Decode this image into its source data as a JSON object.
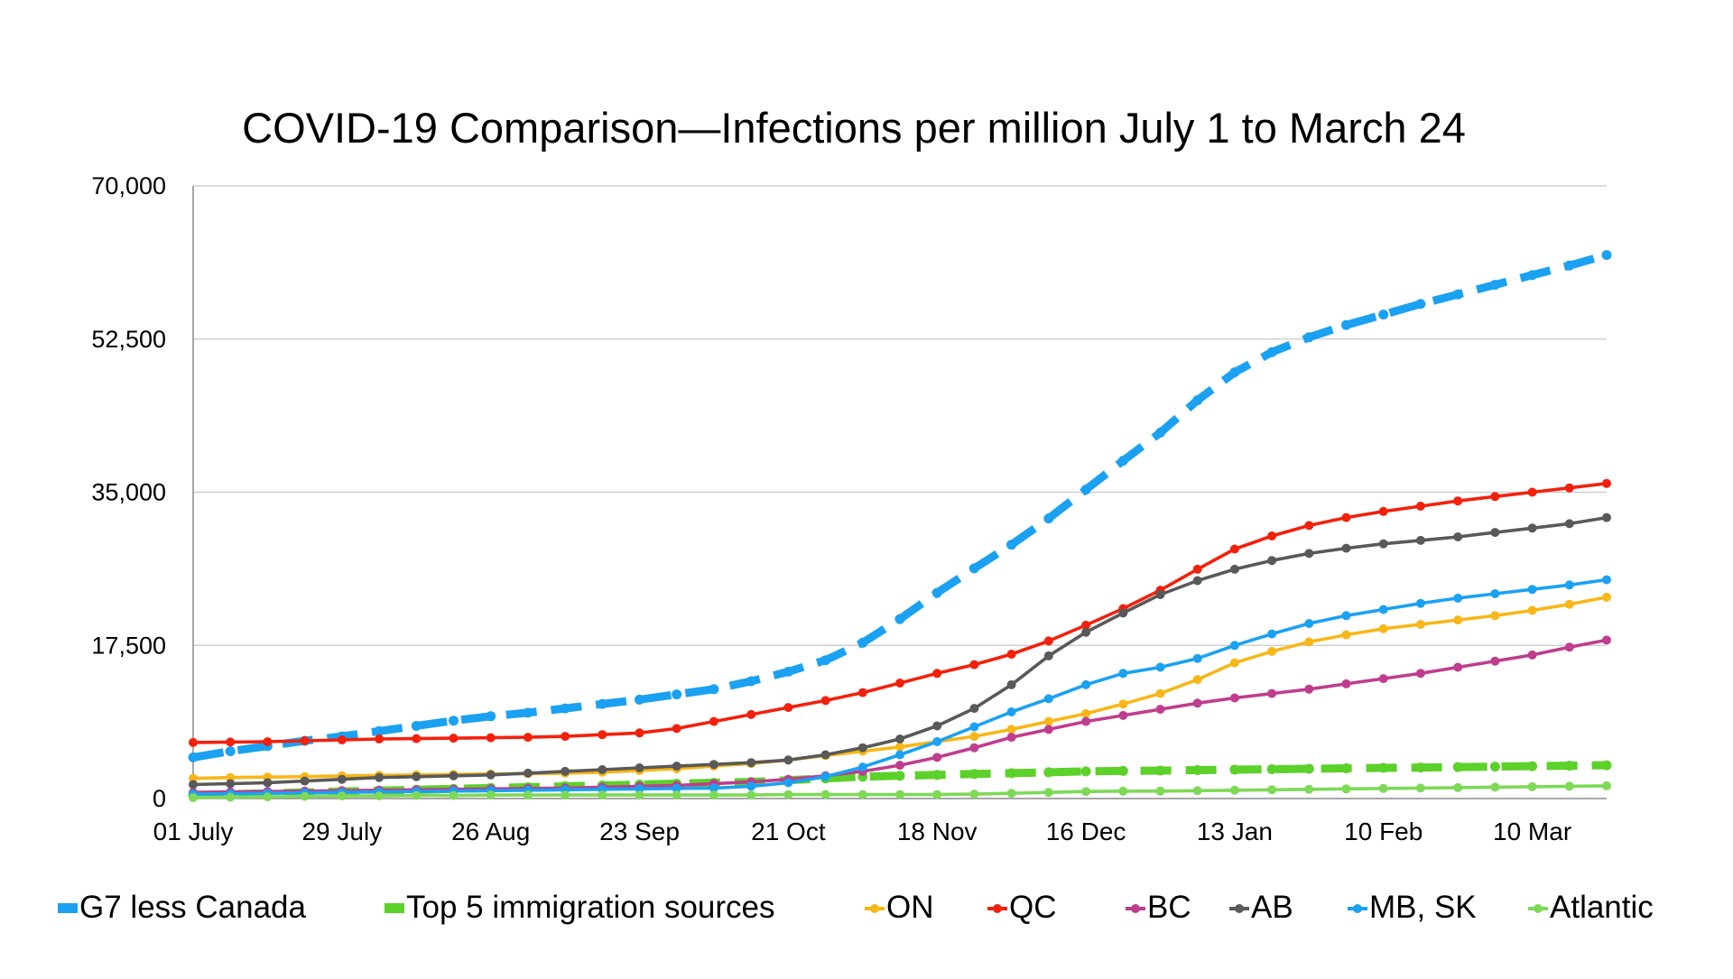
{
  "chart_data": {
    "type": "line",
    "title": "COVID-19 Comparison—Infections per million July 1 to March 24",
    "xlabel": "",
    "ylabel": "",
    "ylim": [
      0,
      70000
    ],
    "yticks": [
      0,
      17500,
      35000,
      52500,
      70000
    ],
    "ytick_labels": [
      "0",
      "17,500",
      "35,000",
      "52,500",
      "70,000"
    ],
    "x": [
      "01 July",
      "08 July",
      "15 July",
      "22 July",
      "29 July",
      "05 Aug",
      "12 Aug",
      "19 Aug",
      "26 Aug",
      "02 Sep",
      "09 Sep",
      "16 Sep",
      "23 Sep",
      "30 Sep",
      "07 Oct",
      "14 Oct",
      "21 Oct",
      "28 Oct",
      "04 Nov",
      "11 Nov",
      "18 Nov",
      "25 Nov",
      "02 Dec",
      "09 Dec",
      "16 Dec",
      "23 Dec",
      "30 Dec",
      "06 Jan",
      "13 Jan",
      "20 Jan",
      "27 Jan",
      "03 Feb",
      "10 Feb",
      "17 Feb",
      "24 Feb",
      "03 Mar",
      "10 Mar",
      "17 Mar",
      "24 Mar"
    ],
    "xtick_labels": [
      "01 July",
      "29 July",
      "26 Aug",
      "23 Sep",
      "21 Oct",
      "18 Nov",
      "16 Dec",
      "13 Jan",
      "10 Feb",
      "10 Mar"
    ],
    "grid": true,
    "legend_position": "bottom",
    "series": [
      {
        "name": "G7 less Canada",
        "color": "#1BA1F2",
        "style": "dash-dot",
        "values": [
          4700,
          5400,
          6000,
          6600,
          7100,
          7700,
          8300,
          8900,
          9400,
          9800,
          10300,
          10800,
          11300,
          11900,
          12500,
          13400,
          14500,
          15800,
          17800,
          20500,
          23500,
          26300,
          29000,
          32000,
          35300,
          38600,
          41800,
          45500,
          48700,
          51000,
          52700,
          54100,
          55300,
          56500,
          57600,
          58700,
          59800,
          60900,
          62100
        ]
      },
      {
        "name": "Top 5 immigration sources",
        "color": "#5BD12A",
        "style": "dash-dot",
        "values": [
          400,
          500,
          600,
          700,
          800,
          900,
          1000,
          1100,
          1200,
          1300,
          1400,
          1500,
          1600,
          1700,
          1800,
          1900,
          2100,
          2300,
          2500,
          2600,
          2700,
          2800,
          2900,
          3000,
          3100,
          3150,
          3200,
          3250,
          3300,
          3350,
          3400,
          3450,
          3500,
          3550,
          3600,
          3650,
          3700,
          3750,
          3800
        ]
      },
      {
        "name": "ON",
        "color": "#F7B718",
        "style": "solid",
        "values": [
          2300,
          2400,
          2450,
          2500,
          2600,
          2650,
          2700,
          2750,
          2800,
          2850,
          2900,
          3000,
          3200,
          3400,
          3700,
          4000,
          4400,
          4900,
          5400,
          5900,
          6500,
          7100,
          7900,
          8800,
          9700,
          10800,
          12000,
          13600,
          15500,
          16800,
          17900,
          18700,
          19400,
          19900,
          20400,
          20900,
          21500,
          22200,
          23000
        ]
      },
      {
        "name": "QC",
        "color": "#F2210C",
        "style": "solid",
        "values": [
          6400,
          6450,
          6500,
          6600,
          6700,
          6800,
          6850,
          6900,
          6950,
          7000,
          7100,
          7300,
          7500,
          8000,
          8800,
          9600,
          10400,
          11200,
          12100,
          13200,
          14300,
          15300,
          16500,
          18000,
          19800,
          21700,
          23800,
          26200,
          28500,
          30000,
          31200,
          32100,
          32800,
          33400,
          34000,
          34500,
          35000,
          35500,
          36000
        ]
      },
      {
        "name": "BC",
        "color": "#BF3D8E",
        "style": "solid",
        "values": [
          700,
          750,
          800,
          850,
          900,
          950,
          1000,
          1050,
          1100,
          1150,
          1200,
          1300,
          1400,
          1500,
          1700,
          1900,
          2200,
          2600,
          3100,
          3800,
          4700,
          5800,
          7000,
          7900,
          8800,
          9500,
          10200,
          10900,
          11500,
          12000,
          12500,
          13100,
          13700,
          14300,
          15000,
          15700,
          16400,
          17300,
          18100
        ]
      },
      {
        "name": "AB",
        "color": "#595959",
        "style": "solid",
        "values": [
          1600,
          1700,
          1800,
          2000,
          2200,
          2400,
          2500,
          2600,
          2700,
          2900,
          3100,
          3300,
          3500,
          3700,
          3900,
          4100,
          4400,
          5000,
          5800,
          6800,
          8300,
          10300,
          13000,
          16300,
          19000,
          21200,
          23300,
          24900,
          26200,
          27200,
          28000,
          28600,
          29100,
          29500,
          29900,
          30400,
          30900,
          31400,
          32100
        ]
      },
      {
        "name": "MB, SK",
        "color": "#1BA1F2",
        "style": "solid",
        "values": [
          500,
          550,
          600,
          650,
          700,
          750,
          800,
          850,
          900,
          950,
          1000,
          1050,
          1100,
          1150,
          1200,
          1400,
          1800,
          2500,
          3600,
          5000,
          6500,
          8200,
          9900,
          11400,
          13000,
          14300,
          15000,
          16000,
          17500,
          18800,
          20000,
          20900,
          21600,
          22300,
          22900,
          23400,
          23900,
          24400,
          25000
        ]
      },
      {
        "name": "Atlantic",
        "color": "#7ED957",
        "style": "solid",
        "values": [
          100,
          150,
          200,
          250,
          300,
          300,
          350,
          350,
          400,
          400,
          400,
          400,
          400,
          400,
          400,
          400,
          450,
          450,
          450,
          450,
          450,
          500,
          600,
          700,
          800,
          850,
          850,
          900,
          950,
          1000,
          1050,
          1100,
          1150,
          1200,
          1250,
          1300,
          1350,
          1400,
          1450
        ]
      }
    ]
  }
}
